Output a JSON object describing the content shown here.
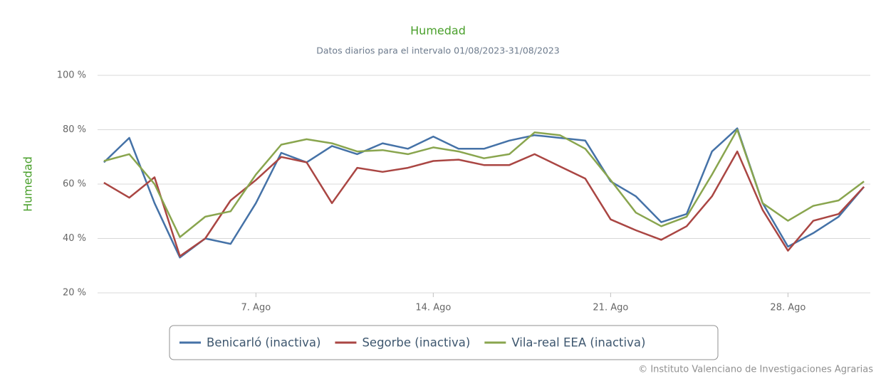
{
  "chart_data": {
    "type": "line",
    "title": "Humedad",
    "subtitle": "Datos diarios para el intervalo 01/08/2023-31/08/2023",
    "y_axis_label": "Humedad",
    "credits": "© Instituto Valenciano de Investigaciones Agrarias",
    "x": [
      1,
      2,
      3,
      4,
      5,
      6,
      7,
      8,
      9,
      10,
      11,
      12,
      13,
      14,
      15,
      16,
      17,
      18,
      19,
      20,
      21,
      22,
      23,
      24,
      25,
      26,
      27,
      28,
      29,
      30,
      31
    ],
    "xlim": [
      0.75,
      31.25
    ],
    "xticks": [
      {
        "value": 7,
        "label": "7. Ago"
      },
      {
        "value": 14,
        "label": "14. Ago"
      },
      {
        "value": 21,
        "label": "21. Ago"
      },
      {
        "value": 28,
        "label": "28. Ago"
      }
    ],
    "ylim": [
      20,
      100
    ],
    "yticks": [
      {
        "value": 20,
        "label": "20 %"
      },
      {
        "value": 40,
        "label": "40 %"
      },
      {
        "value": 60,
        "label": "60 %"
      },
      {
        "value": 80,
        "label": "80 %"
      },
      {
        "value": 100,
        "label": "100 %"
      }
    ],
    "grid": true,
    "legend": "bottom",
    "series": [
      {
        "name": "Benicarló (inactiva)",
        "color": "#4572a7",
        "values": [
          68,
          77,
          53,
          33,
          40,
          38,
          53,
          71.5,
          68,
          74,
          71,
          75,
          73,
          77.5,
          73,
          73,
          76,
          78,
          77,
          76,
          61,
          55.5,
          46,
          49,
          72,
          80.5,
          53,
          37,
          42,
          48,
          59
        ]
      },
      {
        "name": "Segorbe (inactiva)",
        "color": "#aa4643",
        "values": [
          60.5,
          55,
          62.5,
          33.5,
          40,
          54,
          61.5,
          70,
          68,
          53,
          66,
          64.5,
          66,
          68.5,
          69,
          67,
          67,
          71,
          66.5,
          62,
          47,
          43,
          39.5,
          44.5,
          55.5,
          72,
          50.5,
          35.5,
          46.5,
          49,
          59
        ]
      },
      {
        "name": "Vila-real EEA (inactiva)",
        "color": "#89a54e",
        "values": [
          68.5,
          71,
          60,
          40.5,
          48,
          50,
          63.5,
          74.5,
          76.5,
          75,
          72,
          72.5,
          71,
          73.5,
          72,
          69.5,
          71,
          79,
          78,
          73,
          61.5,
          49.5,
          44.5,
          48,
          63.5,
          80,
          53,
          46.5,
          52,
          54,
          61
        ]
      }
    ]
  }
}
